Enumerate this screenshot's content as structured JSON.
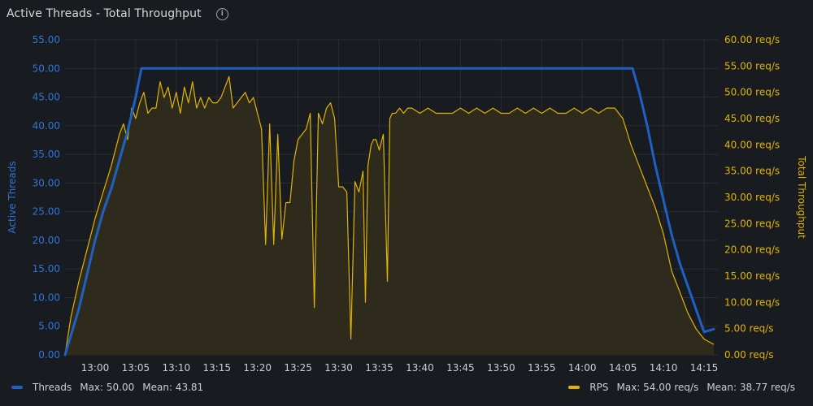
{
  "panel": {
    "title": "Active Threads - Total Throughput"
  },
  "colors": {
    "threads": "#1f60c4",
    "rps": "#e0b400",
    "rps_fill": "#2e2a1c",
    "grid": "#2a2d33",
    "left_axis": "#3274d9",
    "right_axis": "#e0b400"
  },
  "legend": {
    "threads": {
      "label": "Threads",
      "max": "Max: 50.00",
      "mean": "Mean: 43.81"
    },
    "rps": {
      "label": "RPS",
      "max": "Max: 54.00 req/s",
      "mean": "Mean: 38.77 req/s"
    }
  },
  "chart_data": {
    "type": "line",
    "title": "Active Threads - Total Throughput",
    "x_ticks": [
      "13:00",
      "13:05",
      "13:10",
      "13:15",
      "13:20",
      "13:25",
      "13:30",
      "13:35",
      "13:40",
      "13:45",
      "13:50",
      "13:55",
      "14:00",
      "14:05",
      "14:10",
      "14:15"
    ],
    "x_tick_minutes": [
      780,
      785,
      790,
      795,
      800,
      805,
      810,
      815,
      820,
      825,
      830,
      835,
      840,
      845,
      850,
      855
    ],
    "xlim_minutes": [
      776.3,
      856.7
    ],
    "left_axis": {
      "label": "Active Threads",
      "ylim": [
        0,
        55
      ],
      "ticks": [
        "0.00",
        "5.00",
        "10.00",
        "15.00",
        "20.00",
        "25.00",
        "30.00",
        "35.00",
        "40.00",
        "45.00",
        "50.00",
        "55.00"
      ]
    },
    "right_axis": {
      "label": "Total Throughput",
      "ylim": [
        0,
        60
      ],
      "ticks": [
        "0.00 req/s",
        "5.00 req/s",
        "10.00 req/s",
        "15.00 req/s",
        "20.00 req/s",
        "25.00 req/s",
        "30.00 req/s",
        "35.00 req/s",
        "40.00 req/s",
        "45.00 req/s",
        "50.00 req/s",
        "55.00 req/s",
        "60.00 req/s"
      ]
    },
    "series": [
      {
        "name": "Threads",
        "axis": "left",
        "x": [
          776.3,
          778,
          779,
          780,
          781,
          782,
          783,
          784,
          785,
          785.7,
          846.2,
          847,
          848,
          849,
          850,
          851,
          852,
          853,
          854,
          855,
          856.2
        ],
        "y": [
          0,
          8,
          14,
          20,
          25,
          29,
          34,
          39,
          45,
          50,
          50,
          46,
          40,
          33,
          27,
          21,
          16,
          12,
          8,
          4,
          4.5
        ]
      },
      {
        "name": "RPS",
        "axis": "right",
        "x": [
          776.3,
          777,
          778,
          779,
          780,
          781,
          782,
          783,
          783.5,
          784,
          784.5,
          785,
          785.5,
          786,
          786.5,
          787,
          787.5,
          788,
          788.5,
          789,
          789.5,
          790,
          790.5,
          791,
          791.5,
          792,
          792.5,
          793,
          793.5,
          794,
          794.5,
          795,
          795.5,
          796,
          796.5,
          797,
          797.5,
          798,
          798.5,
          799,
          799.5,
          800,
          800.5,
          801,
          801.5,
          802,
          802.5,
          803,
          803.5,
          804,
          804.5,
          805,
          805.5,
          806,
          806.5,
          807,
          807.5,
          808,
          808.5,
          809,
          809.5,
          810,
          810.5,
          811,
          811.5,
          812,
          812.5,
          813,
          813.3,
          813.6,
          814,
          814.3,
          814.6,
          815,
          815.5,
          816,
          816.3,
          816.6,
          817,
          817.5,
          818,
          818.5,
          819,
          820,
          821,
          822,
          823,
          824,
          825,
          826,
          827,
          828,
          829,
          830,
          831,
          832,
          833,
          834,
          835,
          836,
          837,
          838,
          839,
          840,
          841,
          842,
          843,
          844,
          845,
          846,
          847,
          848,
          849,
          850,
          851,
          852,
          853,
          854,
          855,
          856.2
        ],
        "y": [
          0,
          7,
          14,
          20,
          26,
          31,
          36,
          42,
          44,
          41,
          47,
          45,
          48,
          50,
          46,
          47,
          47,
          52,
          49,
          51,
          47,
          50,
          46,
          51,
          48,
          52,
          47,
          49,
          47,
          49,
          48,
          48,
          49,
          51,
          53,
          47,
          48,
          49,
          50,
          48,
          49,
          46,
          43,
          21,
          44,
          21,
          42,
          22,
          29,
          29,
          37,
          41,
          42,
          43,
          46,
          9,
          46,
          44,
          47,
          48,
          45,
          32,
          32,
          31,
          3,
          33,
          31,
          35,
          10,
          36,
          40,
          41,
          41,
          39,
          42,
          14,
          45,
          46,
          46,
          47,
          46,
          47,
          47,
          46,
          47,
          46,
          46,
          46,
          47,
          46,
          47,
          46,
          47,
          46,
          46,
          47,
          46,
          47,
          46,
          47,
          46,
          46,
          47,
          46,
          47,
          46,
          47,
          47,
          45,
          40,
          36,
          32,
          28,
          23,
          16,
          12,
          8,
          5,
          3,
          2
        ]
      }
    ],
    "legend_position": "bottom",
    "grid": true
  }
}
